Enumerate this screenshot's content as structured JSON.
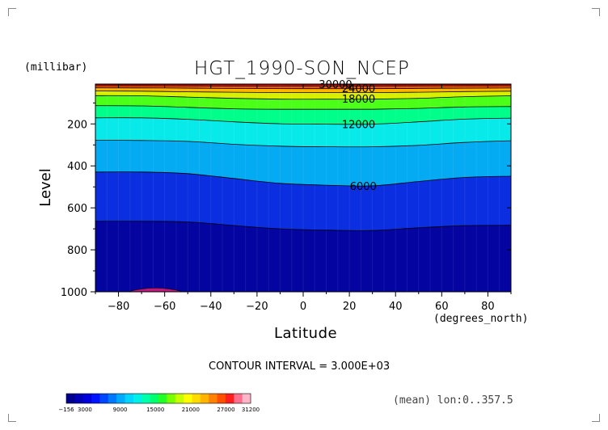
{
  "chart_data": {
    "type": "heatmap",
    "subtype": "filled-contour",
    "title": "HGT_1990-SON_NCEP",
    "xlabel": "Latitude",
    "ylabel": "Level",
    "x_units": "(degrees_north)",
    "y_units": "(millibar)",
    "xlim": [
      -90,
      90
    ],
    "ylim": [
      1000,
      10
    ],
    "y_inverted": true,
    "xticks": [
      -80,
      -60,
      -40,
      -20,
      0,
      20,
      40,
      60,
      80
    ],
    "yticks": [
      200,
      400,
      600,
      800,
      1000
    ],
    "contour_interval_text": "CONTOUR INTERVAL = 3.000E+03",
    "footer_text": "(mean) lon:0..357.5",
    "contour_labels": [
      {
        "text": "30000",
        "lat": 14,
        "level": 10
      },
      {
        "text": "24000",
        "lat": 24,
        "level": 30
      },
      {
        "text": "18000",
        "lat": 24,
        "level": 80
      },
      {
        "text": "12000",
        "lat": 24,
        "level": 200
      },
      {
        "text": "6000",
        "lat": 26,
        "level": 495
      }
    ],
    "contour_lines": [
      {
        "value": 3000,
        "points": [
          [
            -90,
            664
          ],
          [
            -70,
            664
          ],
          [
            -50,
            667
          ],
          [
            -30,
            684
          ],
          [
            -10,
            700
          ],
          [
            10,
            706
          ],
          [
            30,
            708
          ],
          [
            50,
            695
          ],
          [
            70,
            685
          ],
          [
            90,
            683
          ]
        ]
      },
      {
        "value": 6000,
        "points": [
          [
            -90,
            429
          ],
          [
            -70,
            429
          ],
          [
            -50,
            437
          ],
          [
            -30,
            460
          ],
          [
            -10,
            483
          ],
          [
            10,
            492
          ],
          [
            30,
            495
          ],
          [
            50,
            474
          ],
          [
            70,
            455
          ],
          [
            90,
            449
          ]
        ]
      },
      {
        "value": 9000,
        "points": [
          [
            -90,
            278
          ],
          [
            -70,
            279
          ],
          [
            -50,
            283
          ],
          [
            -30,
            297
          ],
          [
            -10,
            306
          ],
          [
            10,
            309
          ],
          [
            30,
            309
          ],
          [
            50,
            302
          ],
          [
            70,
            288
          ],
          [
            90,
            280
          ]
        ]
      },
      {
        "value": 12000,
        "points": [
          [
            -90,
            171
          ],
          [
            -70,
            171
          ],
          [
            -50,
            178
          ],
          [
            -30,
            190
          ],
          [
            -10,
            199
          ],
          [
            10,
            201
          ],
          [
            30,
            201
          ],
          [
            50,
            190
          ],
          [
            70,
            177
          ],
          [
            90,
            172
          ]
        ]
      },
      {
        "value": 15000,
        "points": [
          [
            -90,
            113
          ],
          [
            -70,
            114
          ],
          [
            -50,
            121
          ],
          [
            -30,
            128
          ],
          [
            -10,
            130
          ],
          [
            10,
            130
          ],
          [
            30,
            130
          ],
          [
            50,
            126
          ],
          [
            70,
            119
          ],
          [
            90,
            117
          ]
        ]
      },
      {
        "value": 18000,
        "points": [
          [
            -90,
            65
          ],
          [
            -70,
            66
          ],
          [
            -50,
            72
          ],
          [
            -30,
            78
          ],
          [
            -10,
            82
          ],
          [
            10,
            82
          ],
          [
            30,
            82
          ],
          [
            50,
            78
          ],
          [
            70,
            70
          ],
          [
            90,
            66
          ]
        ]
      },
      {
        "value": 21000,
        "points": [
          [
            -90,
            43
          ],
          [
            -70,
            44
          ],
          [
            -50,
            47
          ],
          [
            -30,
            49
          ],
          [
            -10,
            51
          ],
          [
            10,
            51
          ],
          [
            30,
            51
          ],
          [
            50,
            49
          ],
          [
            70,
            46
          ],
          [
            90,
            44
          ]
        ]
      },
      {
        "value": 24000,
        "points": [
          [
            -90,
            28
          ],
          [
            -60,
            29
          ],
          [
            -30,
            31
          ],
          [
            0,
            32
          ],
          [
            30,
            32
          ],
          [
            60,
            30
          ],
          [
            90,
            29
          ]
        ]
      },
      {
        "value": 27000,
        "points": [
          [
            -90,
            18
          ],
          [
            -60,
            18
          ],
          [
            -30,
            19
          ],
          [
            0,
            19
          ],
          [
            30,
            19
          ],
          [
            60,
            18
          ],
          [
            90,
            18
          ]
        ]
      },
      {
        "value": 30000,
        "points": [
          [
            -90,
            11
          ],
          [
            -60,
            11
          ],
          [
            -30,
            11
          ],
          [
            0,
            11
          ],
          [
            30,
            11
          ],
          [
            60,
            11
          ],
          [
            90,
            11
          ]
        ]
      }
    ],
    "high_region": {
      "lat_range": [
        -76,
        -52
      ],
      "peak_lat": -64,
      "top_level": 987
    },
    "colorbar": {
      "labels": [
        "-156",
        "3000",
        "9000",
        "15000",
        "21000",
        "27000",
        "31200"
      ],
      "colors": [
        "#00008e",
        "#0000b4",
        "#0000dc",
        "#0014ff",
        "#0046ff",
        "#0078ff",
        "#00aaff",
        "#00d4ff",
        "#00f0e6",
        "#00ffaa",
        "#00ff6e",
        "#20ff28",
        "#78ff00",
        "#c8ff00",
        "#ffff00",
        "#ffdc00",
        "#ffb400",
        "#ff8200",
        "#ff5000",
        "#ff1e1e",
        "#ff6e8c",
        "#ffb4c8"
      ]
    },
    "fill_colors": [
      "#0404a0",
      "#0a2ee0",
      "#04aaf2",
      "#08eaea",
      "#00ff8a",
      "#4cff18",
      "#d8f000",
      "#ffb400",
      "#ff5000",
      "#e01010"
    ],
    "grid": false,
    "legend": "bottom-left"
  }
}
